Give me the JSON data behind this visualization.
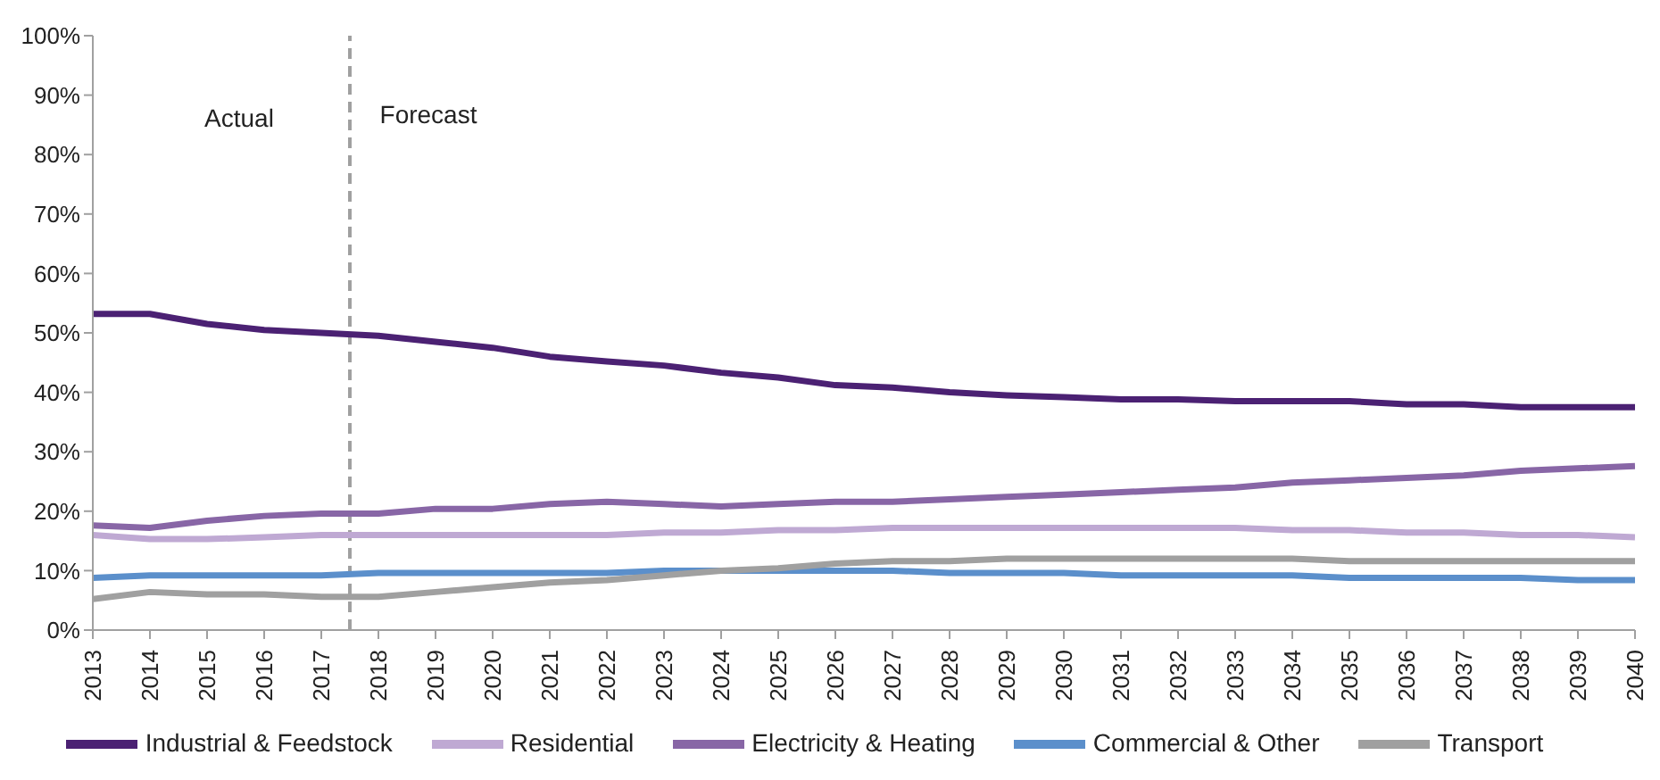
{
  "chart_data": {
    "type": "line",
    "x": [
      2013,
      2014,
      2015,
      2016,
      2017,
      2018,
      2019,
      2020,
      2021,
      2022,
      2023,
      2024,
      2025,
      2026,
      2027,
      2028,
      2029,
      2030,
      2031,
      2032,
      2033,
      2034,
      2035,
      2036,
      2037,
      2038,
      2039,
      2040
    ],
    "series": [
      {
        "name": "Industrial & Feedstock",
        "color": "#4b2173",
        "values": [
          53.2,
          53.2,
          51.5,
          50.5,
          50,
          49.5,
          48.5,
          47.5,
          46,
          45.2,
          44.5,
          43.3,
          42.5,
          41.2,
          40.8,
          40,
          39.5,
          39.2,
          38.8,
          38.8,
          38.5,
          38.5,
          38.5,
          38,
          38,
          37.5,
          37.5,
          37.5
        ]
      },
      {
        "name": "Residential",
        "color": "#bfa9d3",
        "values": [
          16,
          15.3,
          15.3,
          15.6,
          16,
          16,
          16,
          16,
          16,
          16,
          16.4,
          16.4,
          16.8,
          16.8,
          17.2,
          17.2,
          17.2,
          17.2,
          17.2,
          17.2,
          17.2,
          16.8,
          16.8,
          16.4,
          16.4,
          16,
          16,
          15.6
        ]
      },
      {
        "name": "Electricity & Heating",
        "color": "#8866a6",
        "values": [
          17.6,
          17.2,
          18.4,
          19.2,
          19.6,
          19.6,
          20.4,
          20.4,
          21.2,
          21.6,
          21.2,
          20.8,
          21.2,
          21.6,
          21.6,
          22,
          22.4,
          22.8,
          23.2,
          23.6,
          24,
          24.8,
          25.2,
          25.6,
          26,
          26.8,
          27.2,
          27.6
        ]
      },
      {
        "name": "Commercial & Other",
        "color": "#5b8fcb",
        "values": [
          8.8,
          9.2,
          9.2,
          9.2,
          9.2,
          9.6,
          9.6,
          9.6,
          9.6,
          9.6,
          10,
          10,
          10,
          10,
          10,
          9.6,
          9.6,
          9.6,
          9.2,
          9.2,
          9.2,
          9.2,
          8.8,
          8.8,
          8.8,
          8.8,
          8.4,
          8.4
        ]
      },
      {
        "name": "Transport",
        "color": "#a0a0a0",
        "values": [
          5.2,
          6.4,
          6,
          6,
          5.6,
          5.6,
          6.4,
          7.2,
          8,
          8.4,
          9.2,
          10,
          10.4,
          11.2,
          11.6,
          11.6,
          12,
          12,
          12,
          12,
          12,
          12,
          11.6,
          11.6,
          11.6,
          11.6,
          11.6,
          11.6
        ]
      }
    ],
    "xlim": [
      2013,
      2040
    ],
    "xticks": [
      2013,
      2014,
      2015,
      2016,
      2017,
      2018,
      2019,
      2020,
      2021,
      2022,
      2023,
      2024,
      2025,
      2026,
      2027,
      2028,
      2029,
      2030,
      2031,
      2032,
      2033,
      2034,
      2035,
      2036,
      2037,
      2038,
      2039,
      2040
    ],
    "ylim": [
      0,
      100
    ],
    "yticks": [
      {
        "value": 0,
        "label": "0%"
      },
      {
        "value": 10,
        "label": "10%"
      },
      {
        "value": 20,
        "label": "20%"
      },
      {
        "value": 30,
        "label": "30%"
      },
      {
        "value": 40,
        "label": "40%"
      },
      {
        "value": 50,
        "label": "50%"
      },
      {
        "value": 60,
        "label": "60%"
      },
      {
        "value": 70,
        "label": "70%"
      },
      {
        "value": 80,
        "label": "80%"
      },
      {
        "value": 90,
        "label": "90%"
      },
      {
        "value": 100,
        "label": "100%"
      }
    ],
    "ref_lines": [
      {
        "axis": "x",
        "value": 2017.5,
        "color": "#a0a0a0",
        "line_style": "dashed"
      }
    ],
    "annotations": [
      "Actual",
      "Forecast"
    ],
    "grid": false,
    "legend": "bottom",
    "marker": "none",
    "line_style": "solid"
  }
}
